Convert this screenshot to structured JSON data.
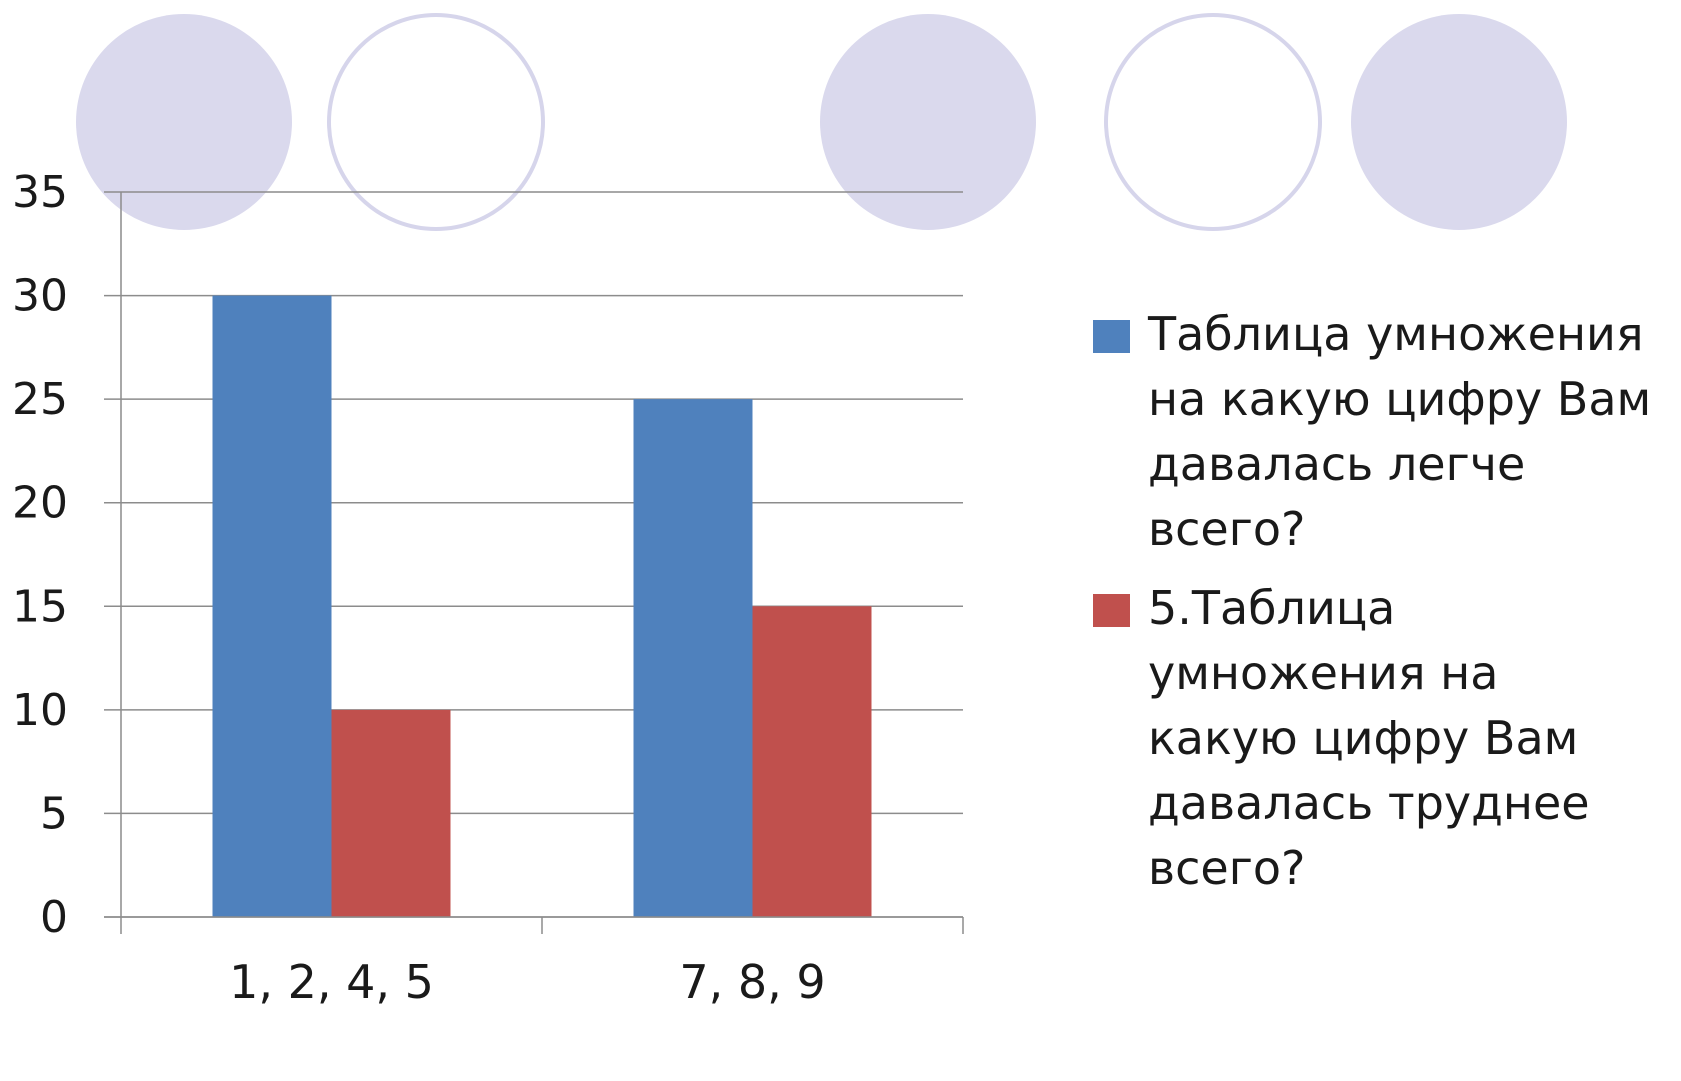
{
  "colors": {
    "series1": "#4F81BD",
    "series2": "#C0504D",
    "circle_fill": "#DAD9ED",
    "circle_stroke": "#D6D5EB",
    "grid": "#8C8C8C"
  },
  "chart_data": {
    "type": "bar",
    "categories": [
      "1, 2, 4, 5",
      "7, 8, 9"
    ],
    "series": [
      {
        "name": "Таблица умножения на какую цифру Вам давалась легче всего?",
        "values": [
          30,
          25
        ]
      },
      {
        "name": "5.Таблица умножения на какую цифру Вам давалась труднее всего?",
        "values": [
          10,
          15
        ]
      }
    ],
    "ylim": [
      0,
      35
    ],
    "yticks": [
      "0",
      "5",
      "10",
      "15",
      "20",
      "25",
      "30",
      "35"
    ],
    "grid": true,
    "legend_position": "right"
  },
  "decorations": {
    "circles": [
      "filled",
      "outline",
      "filled",
      "outline",
      "filled"
    ]
  }
}
